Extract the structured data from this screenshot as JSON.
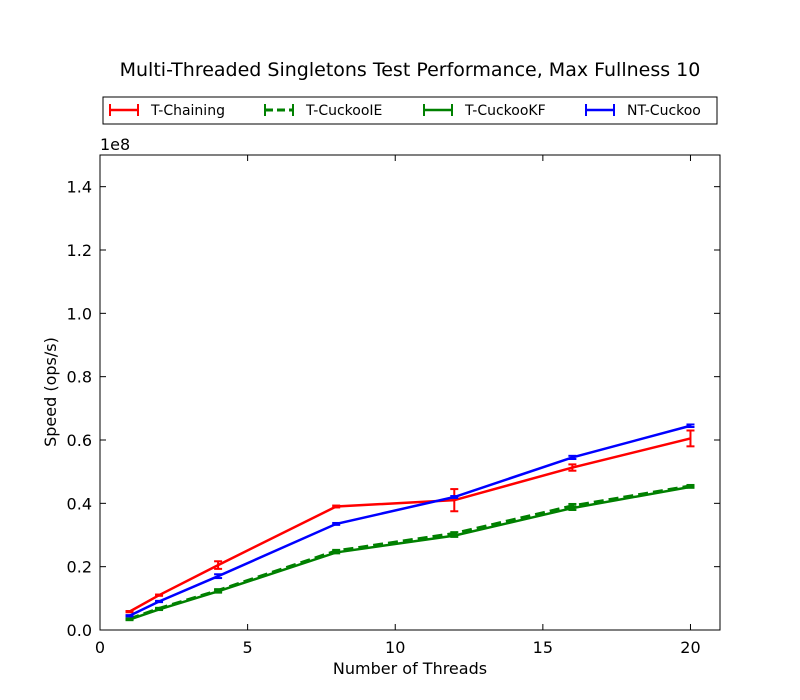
{
  "chart_data": {
    "type": "line",
    "title": "Multi-Threaded Singletons Test Performance, Max Fullness 10",
    "xlabel": "Number of Threads",
    "ylabel": "Speed (ops/s)",
    "y_offset_label": "1e8",
    "xlim": [
      0,
      21
    ],
    "ylim": [
      0,
      1.5
    ],
    "xticks": [
      0,
      5,
      10,
      15,
      20
    ],
    "xtick_labels": [
      "0",
      "5",
      "10",
      "15",
      "20"
    ],
    "yticks": [
      0,
      0.2,
      0.4,
      0.6,
      0.8,
      1.0,
      1.2,
      1.4
    ],
    "ytick_labels": [
      "0.0",
      "0.2",
      "0.4",
      "0.6",
      "0.8",
      "1.0",
      "1.2",
      "1.4"
    ],
    "grid": false,
    "legend_position": "top",
    "x": [
      1,
      2,
      4,
      8,
      12,
      16,
      20
    ],
    "series": [
      {
        "name": "T-Chaining",
        "color": "#ff0000",
        "dash": "solid",
        "values": [
          0.058,
          0.11,
          0.205,
          0.39,
          0.41,
          0.513,
          0.605
        ],
        "errors": [
          0.002,
          0.002,
          0.012,
          0.003,
          0.035,
          0.01,
          0.025
        ]
      },
      {
        "name": "T-CuckooIE",
        "color": "#008000",
        "dash": "dashed",
        "values": [
          0.035,
          0.068,
          0.125,
          0.25,
          0.305,
          0.392,
          0.455
        ],
        "errors": [
          0.002,
          0.002,
          0.004,
          0.003,
          0.004,
          0.006,
          0.003
        ]
      },
      {
        "name": "T-CuckooKF",
        "color": "#008000",
        "dash": "solid",
        "values": [
          0.033,
          0.065,
          0.122,
          0.245,
          0.298,
          0.385,
          0.452
        ],
        "errors": [
          0.002,
          0.002,
          0.004,
          0.003,
          0.004,
          0.006,
          0.003
        ]
      },
      {
        "name": "NT-Cuckoo",
        "color": "#0000ff",
        "dash": "solid",
        "values": [
          0.045,
          0.09,
          0.17,
          0.335,
          0.42,
          0.545,
          0.645
        ],
        "errors": [
          0.002,
          0.002,
          0.006,
          0.003,
          0.003,
          0.005,
          0.004
        ]
      }
    ]
  }
}
